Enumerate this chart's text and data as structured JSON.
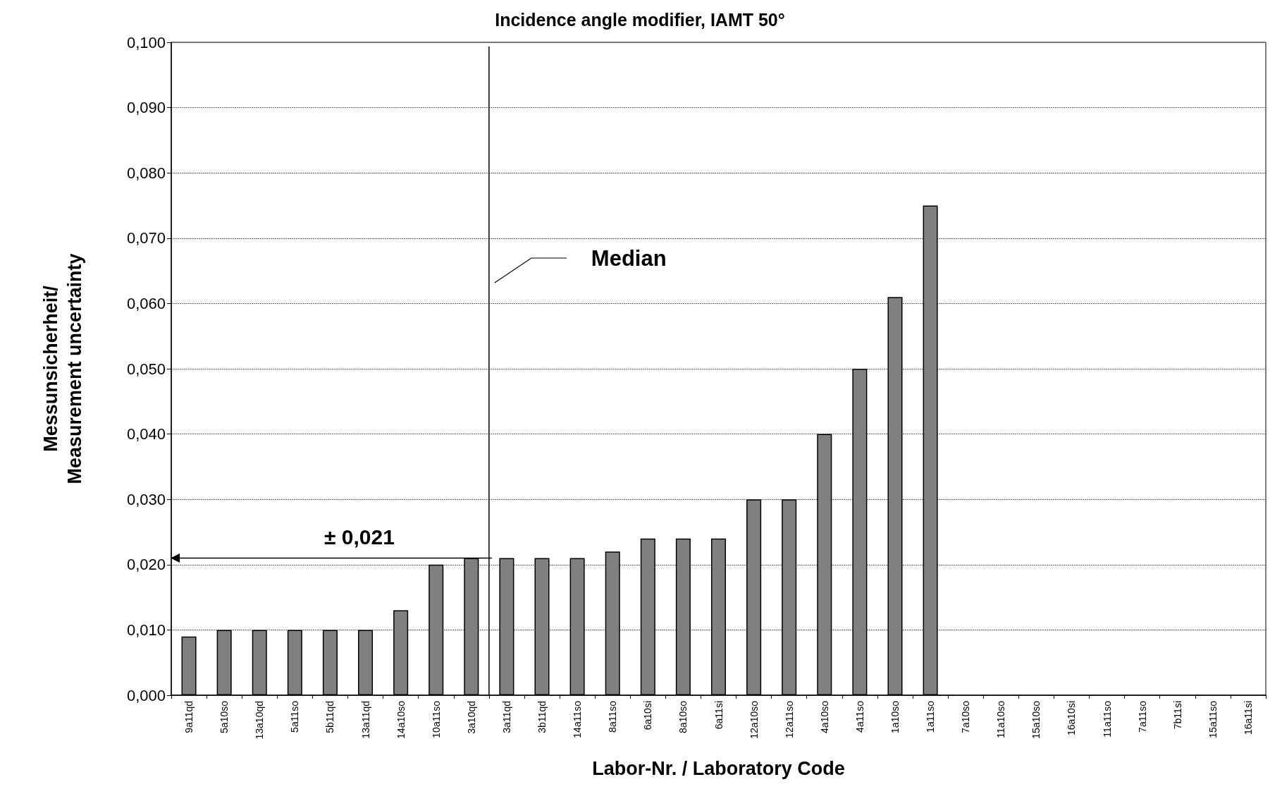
{
  "chart_data": {
    "type": "bar",
    "title": "Incidence angle modifier, IAMT 50°",
    "xlabel": "Labor-Nr. / Laboratory Code",
    "ylabel": "Messunsicherheit/\nMeasurement uncertainty",
    "categories": [
      "9a11qd",
      "5a10so",
      "13a10qd",
      "5a11so",
      "5b11qd",
      "13a11qd",
      "14a10so",
      "10a11so",
      "3a10qd",
      "3a11qd",
      "3b11qd",
      "14a11so",
      "8a11so",
      "6a10si",
      "8a10so",
      "6a11si",
      "12a10so",
      "12a11so",
      "4a10so",
      "4a11so",
      "1a10so",
      "1a11so",
      "7a10so",
      "11a10so",
      "15a10so",
      "16a10si",
      "11a11so",
      "7a11so",
      "7b11si",
      "15a11so",
      "16a11si"
    ],
    "values": [
      0.009,
      0.01,
      0.01,
      0.01,
      0.01,
      0.01,
      0.013,
      0.02,
      0.021,
      0.021,
      0.021,
      0.021,
      0.022,
      0.024,
      0.024,
      0.024,
      0.03,
      0.03,
      0.04,
      0.05,
      0.061,
      0.075,
      null,
      null,
      null,
      null,
      null,
      null,
      null,
      null,
      null
    ],
    "color": "#808080",
    "ylim": [
      0,
      0.1
    ],
    "yticks": [
      {
        "value": 0,
        "label": "0,000"
      },
      {
        "value": 0.01,
        "label": "0,010"
      },
      {
        "value": 0.02,
        "label": "0,020"
      },
      {
        "value": 0.03,
        "label": "0,030"
      },
      {
        "value": 0.04,
        "label": "0,040"
      },
      {
        "value": 0.05,
        "label": "0,050"
      },
      {
        "value": 0.06,
        "label": "0,060"
      },
      {
        "value": 0.07,
        "label": "0,070"
      },
      {
        "value": 0.08,
        "label": "0,080"
      },
      {
        "value": 0.09,
        "label": "0,090"
      },
      {
        "value": 0.1,
        "label": "0,100"
      }
    ],
    "grid": "y",
    "ref_lines": [
      {
        "axis": "x",
        "value": "3a10qd",
        "label": "Median"
      },
      {
        "axis": "y",
        "value": 0.021,
        "label": "± 0,021"
      }
    ]
  }
}
